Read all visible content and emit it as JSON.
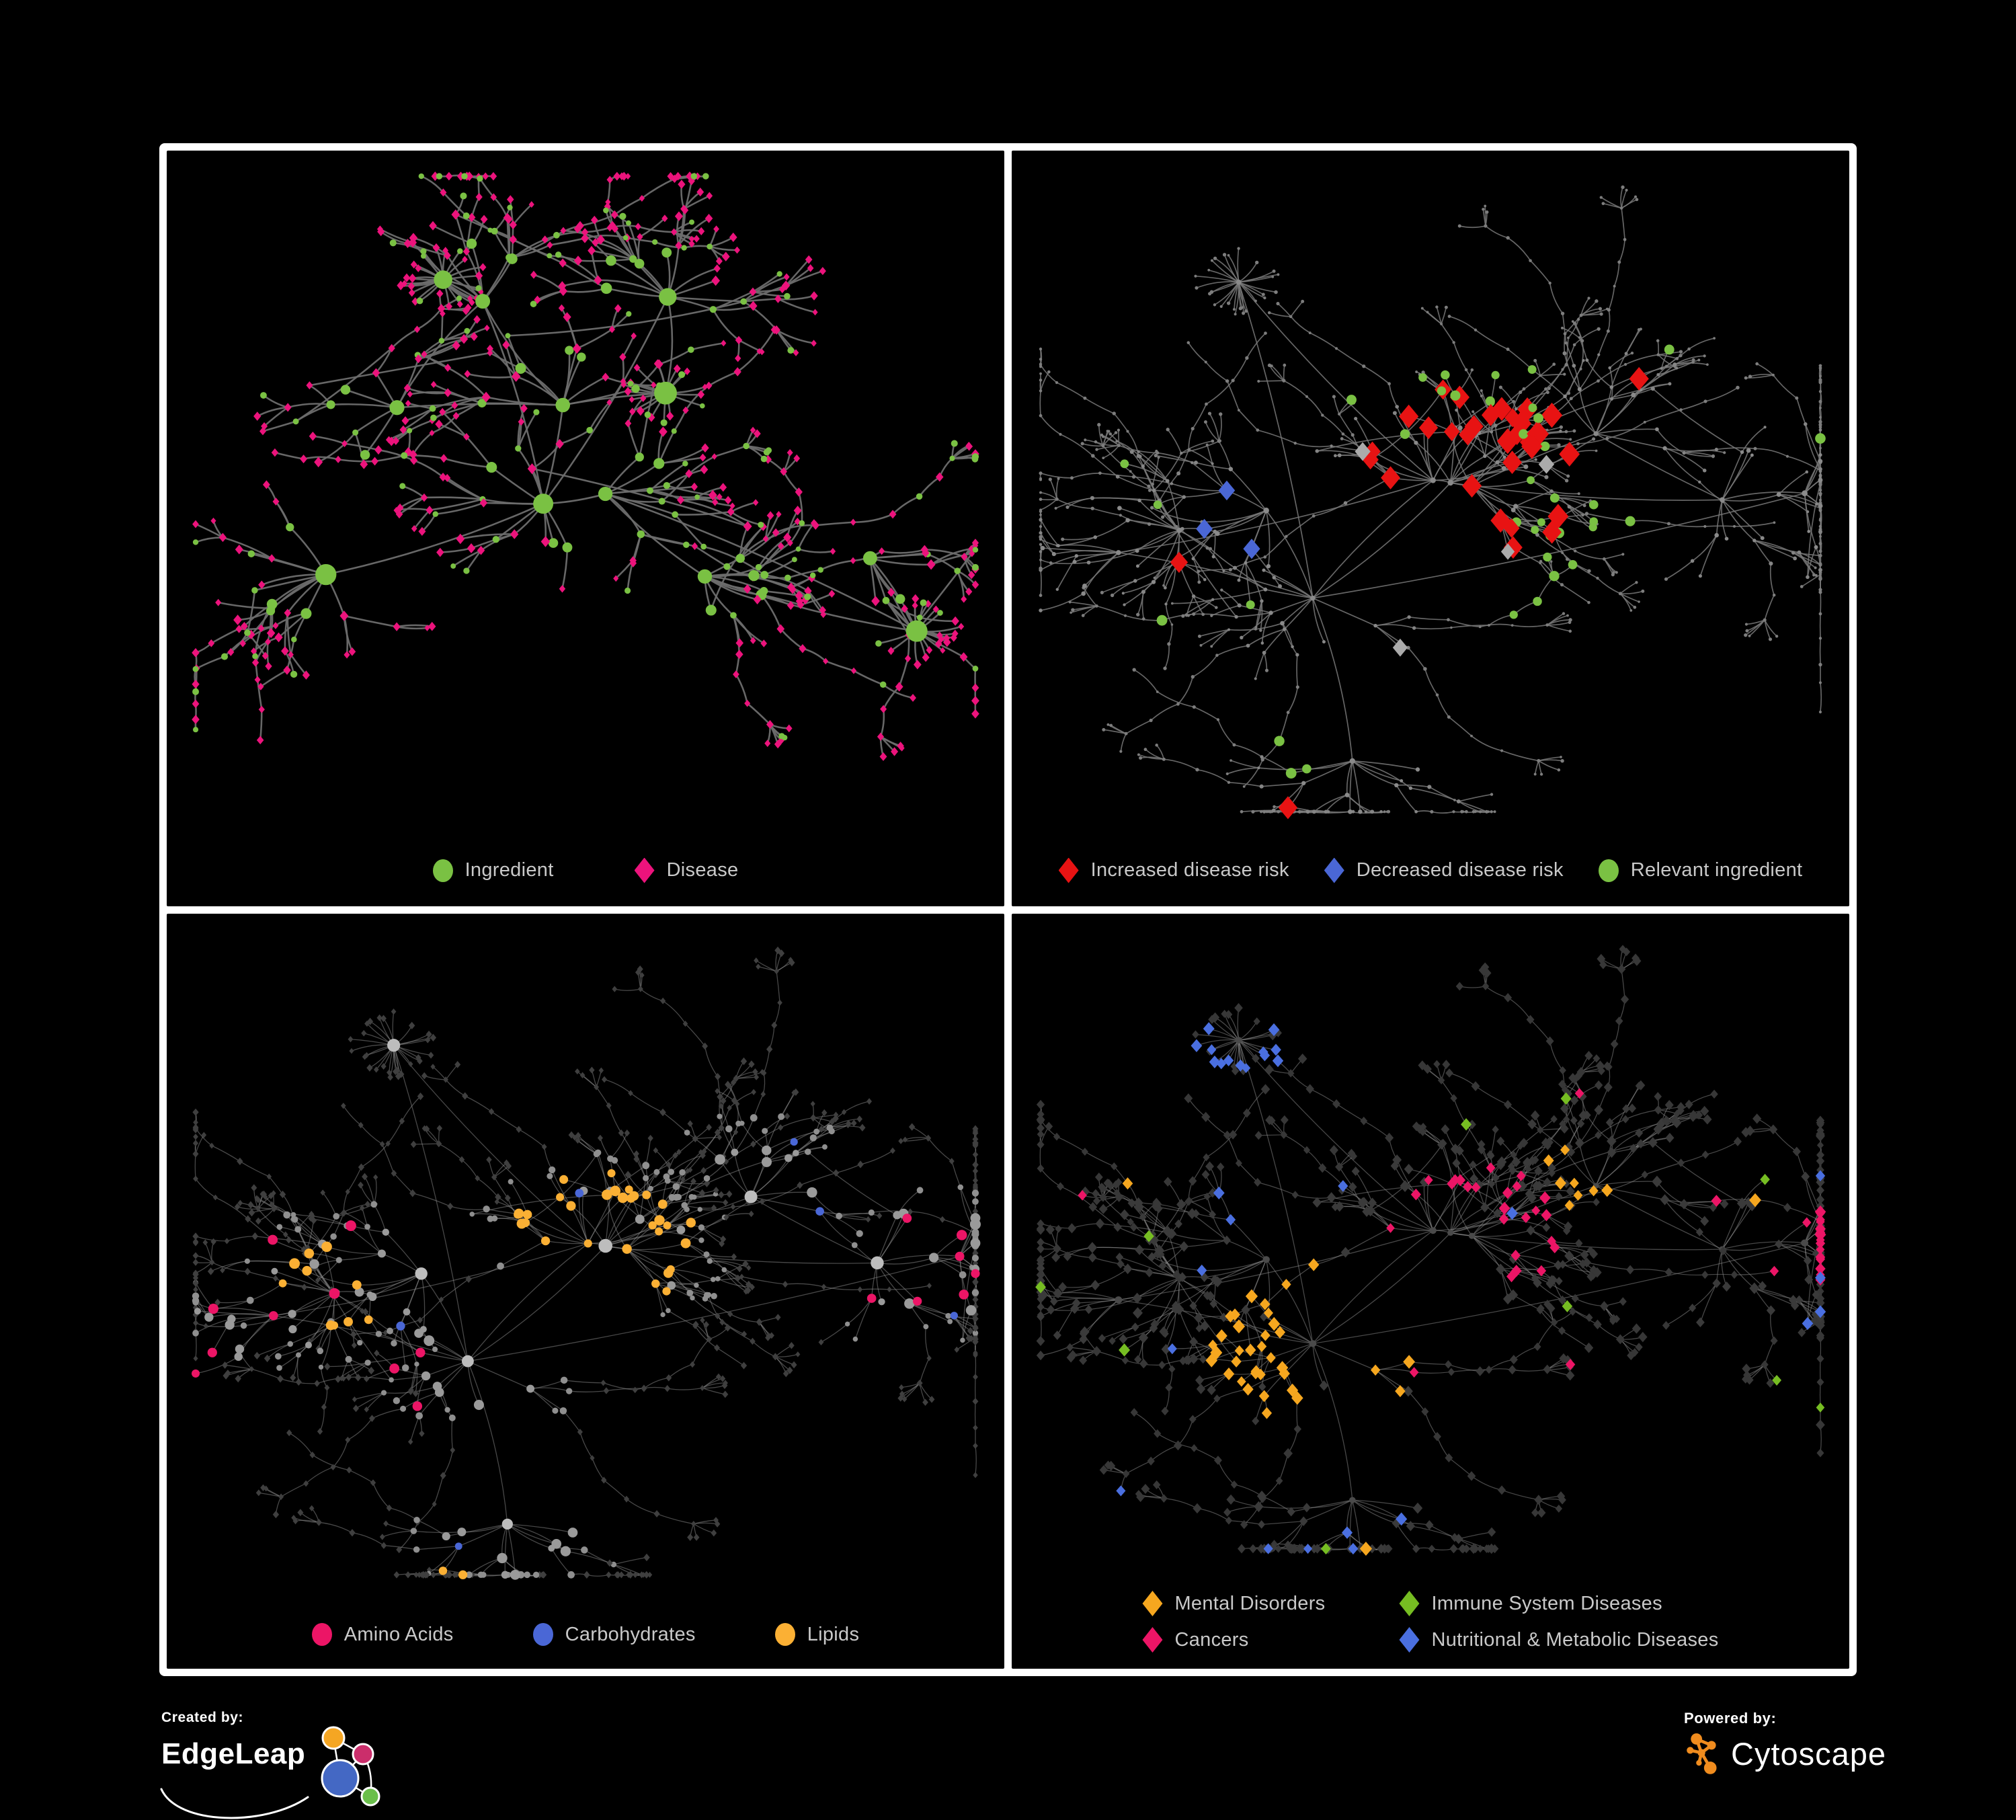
{
  "page": {
    "background": "#000000",
    "frame_color": "#ffffff"
  },
  "footer": {
    "created_by": {
      "label": "Created by:",
      "brand": "EdgeLeap",
      "logo_colors": {
        "orange": "#f5a623",
        "magenta": "#cb2e6b",
        "blue": "#4468c4",
        "green": "#6abf4b",
        "stroke": "#ffffff"
      }
    },
    "powered_by": {
      "label": "Powered by:",
      "brand": "Cytoscape",
      "logo_color": "#f08c1e"
    }
  },
  "legend_text_color": "#c9c9c9",
  "panels": [
    {
      "id": "ingredient-disease",
      "legend": {
        "items": [
          {
            "label": "Ingredient",
            "shape": "circle",
            "color": "#7ac143"
          },
          {
            "label": "Disease",
            "shape": "diamond",
            "color": "#ec137c"
          }
        ]
      },
      "network": {
        "seed": 931,
        "clusters": 12,
        "coreHubs": 3,
        "fanProb": 0.18,
        "chainProb": 0.22,
        "crossLinks": 34,
        "edge": {
          "color": "#6d6d6d",
          "width": 2.6,
          "opacity": 0.95
        },
        "style": {
          "levels": {
            "0": {
              "shape": "circle",
              "color": "#7ac143",
              "size": 13,
              "jitter": 0.7
            },
            "1": {
              "shape": "circle",
              "color": "#7ac143",
              "size": 6.5,
              "jitter": 0.6
            },
            "2": {
              "shape": "diamond",
              "color": "#ec137c",
              "size": 5.5,
              "jitter": 0.4
            },
            "3": {
              "shape": "diamond",
              "color": "#ec137c",
              "size": 5,
              "jitter": 0.4
            }
          },
          "overrides": [
            {
              "shape": "circle",
              "color": "#7ac143",
              "size": 4.5,
              "levels": [
                2,
                3
              ],
              "p": 0.22
            },
            {
              "shape": "diamond",
              "color": "#ec137c",
              "size": 6,
              "levels": [
                1
              ],
              "p": 0.35
            }
          ]
        }
      }
    },
    {
      "id": "disease-risk",
      "legend": {
        "items": [
          {
            "label": "Increased disease risk",
            "shape": "diamond",
            "color": "#e81313"
          },
          {
            "label": "Decreased disease risk",
            "shape": "diamond",
            "color": "#4a67d6"
          },
          {
            "label": "Relevant ingredient",
            "shape": "circle",
            "color": "#7ac143"
          }
        ]
      },
      "network": {
        "seed": 2024,
        "clusters": 12,
        "coreHubs": 3,
        "fanProb": 0.15,
        "chainProb": 0.3,
        "crossLinks": 26,
        "edge": {
          "color": "#787878",
          "width": 1.7,
          "opacity": 0.85
        },
        "style": {
          "levels": {
            "0": {
              "shape": "circle",
              "color": "#8a8a8a",
              "size": 4,
              "jitter": 0.3
            },
            "1": {
              "shape": "circle",
              "color": "#8a8a8a",
              "size": 3,
              "jitter": 0.4
            },
            "2": {
              "shape": "circle",
              "color": "#858585",
              "size": 2.6,
              "jitter": 0.4
            },
            "3": {
              "shape": "circle",
              "color": "#7d7d7d",
              "size": 2.3,
              "jitter": 0.4
            }
          },
          "overrides": [
            {
              "shape": "diamond",
              "color": "#e81313",
              "size": 14,
              "levels": [
                0,
                1,
                2
              ],
              "zones": [
                {
                  "hub": 0,
                  "r": 0.16,
                  "p": 0.4
                },
                {
                  "hub": 1,
                  "r": 0.12,
                  "p": 0.35
                },
                {
                  "hub": 5,
                  "r": 0.08,
                  "p": 0.3
                }
              ],
              "p": 0.01
            },
            {
              "shape": "diamond",
              "color": "#4a67d6",
              "size": 12,
              "levels": [
                1,
                2
              ],
              "zones": [
                {
                  "hub": 6,
                  "r": 0.09,
                  "p": 0.5
                }
              ],
              "p": 0.006
            },
            {
              "shape": "diamond",
              "color": "#ababab",
              "size": 11,
              "levels": [
                1,
                2
              ],
              "zones": [
                {
                  "hub": 0,
                  "r": 0.26,
                  "p": 0.05
                }
              ],
              "p": 0.005
            },
            {
              "shape": "circle",
              "color": "#7ac143",
              "size": 7,
              "levels": [
                1,
                2,
                3
              ],
              "zones": [
                {
                  "hub": 0,
                  "r": 0.2,
                  "p": 0.22
                },
                {
                  "hub": 2,
                  "r": 0.12,
                  "p": 0.25
                }
              ],
              "p": 0.012
            }
          ]
        }
      }
    },
    {
      "id": "macronutrients",
      "legend": {
        "items": [
          {
            "label": "Amino Acids",
            "shape": "circle",
            "color": "#ec1566"
          },
          {
            "label": "Carbohydrates",
            "shape": "circle",
            "color": "#4a67d6"
          },
          {
            "label": "Lipids",
            "shape": "circle",
            "color": "#fbb034"
          }
        ]
      },
      "network": {
        "seed": 2024,
        "clusters": 12,
        "coreHubs": 3,
        "fanProb": 0.15,
        "chainProb": 0.3,
        "crossLinks": 26,
        "edge": {
          "color": "#909090",
          "width": 1.3,
          "opacity": 0.5
        },
        "style": {
          "levels": {
            "0": {
              "shape": "circle",
              "color": "#bdbdbd",
              "size": 9.5,
              "jitter": 0.35
            },
            "1": {
              "shape": "circle",
              "color": "#9a9a9a",
              "size": 6.5,
              "jitter": 0.5
            },
            "2": {
              "shape": "circle",
              "color": "#8f8f8f",
              "size": 4.6,
              "jitter": 0.4
            },
            "3": {
              "shape": "diamond",
              "color": "#3f3f3f",
              "size": 4.2,
              "jitter": 0.3
            }
          },
          "overrides": [
            {
              "shape": "circle",
              "color": "#fbb034",
              "size": 7,
              "levels": [
                0,
                1,
                2
              ],
              "zones": [
                {
                  "hub": 2,
                  "r": 0.11,
                  "p": 0.85
                },
                {
                  "hub": 0,
                  "r": 0.09,
                  "p": 0.35
                },
                {
                  "hub": 7,
                  "r": 0.07,
                  "p": 0.5
                }
              ],
              "p": 0.02
            },
            {
              "shape": "circle",
              "color": "#4a67d6",
              "size": 6,
              "levels": [
                1,
                2
              ],
              "zones": [
                {
                  "hub": 2,
                  "r": 0.08,
                  "p": 0.3
                }
              ],
              "p": 0.012
            },
            {
              "shape": "circle",
              "color": "#ec1566",
              "size": 7,
              "levels": [
                0,
                1,
                2
              ],
              "zones": [
                {
                  "hub": 9,
                  "r": 0.12,
                  "p": 0.3
                },
                {
                  "hub": 4,
                  "r": 0.15,
                  "p": 0.15
                }
              ],
              "p": 0.02
            }
          ]
        }
      }
    },
    {
      "id": "disease-classes",
      "legend": {
        "items": [
          {
            "label": "Mental Disorders",
            "shape": "diamond",
            "color": "#f6a71f"
          },
          {
            "label": "Immune System Diseases",
            "shape": "diamond",
            "color": "#76bd22"
          },
          {
            "label": "Cancers",
            "shape": "diamond",
            "color": "#ec1566"
          },
          {
            "label": "Nutritional & Metabolic Diseases",
            "shape": "diamond",
            "color": "#4a6fe0"
          }
        ]
      },
      "network": {
        "seed": 2024,
        "clusters": 12,
        "coreHubs": 3,
        "fanProb": 0.15,
        "chainProb": 0.3,
        "crossLinks": 26,
        "edge": {
          "color": "#909090",
          "width": 1.3,
          "opacity": 0.5
        },
        "style": {
          "levels": {
            "0": {
              "shape": "circle",
              "color": "#4a4a4a",
              "size": 5,
              "jitter": 0.3
            },
            "1": {
              "shape": "diamond",
              "color": "#3a3a3a",
              "size": 6.8,
              "jitter": 0.3
            },
            "2": {
              "shape": "diamond",
              "color": "#3a3a3a",
              "size": 6.4,
              "jitter": 0.3
            },
            "3": {
              "shape": "diamond",
              "color": "#373737",
              "size": 6,
              "jitter": 0.3
            }
          },
          "overrides": [
            {
              "shape": "diamond",
              "color": "#f6a71f",
              "size": 8,
              "levels": [
                1,
                2,
                3
              ],
              "zones": [
                {
                  "hub": 3,
                  "r": 0.13,
                  "p": 0.9
                },
                {
                  "hub": 8,
                  "r": 0.07,
                  "p": 0.45
                }
              ],
              "p": 0.006
            },
            {
              "shape": "diamond",
              "color": "#ec1566",
              "size": 7.5,
              "levels": [
                1,
                2,
                3
              ],
              "zones": [
                {
                  "hub": 0,
                  "r": 0.11,
                  "p": 0.5
                },
                {
                  "hub": 10,
                  "r": 0.06,
                  "p": 0.5
                }
              ],
              "p": 0.012
            },
            {
              "shape": "diamond",
              "color": "#4a6fe0",
              "size": 7.5,
              "levels": [
                1,
                2,
                3
              ],
              "zones": [
                {
                  "hub": 6,
                  "r": 0.09,
                  "p": 0.55
                },
                {
                  "hub": 5,
                  "r": 0.1,
                  "p": 0.4
                },
                {
                  "hub": 11,
                  "r": 0.08,
                  "p": 0.35
                }
              ],
              "p": 0.02
            },
            {
              "shape": "diamond",
              "color": "#76bd22",
              "size": 7.5,
              "levels": [
                1,
                2,
                3
              ],
              "p": 0.012
            }
          ]
        }
      }
    }
  ]
}
